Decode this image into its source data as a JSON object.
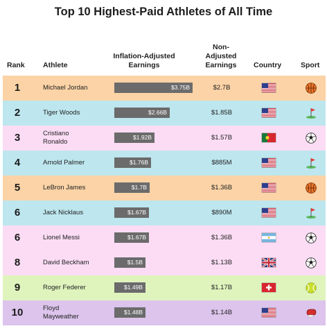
{
  "title": "Top 10 Highest-Paid Athletes of All Time",
  "headers": {
    "rank": "Rank",
    "athlete": "Athlete",
    "inflation": "Inflation-Adjusted\nEarnings",
    "non_adjusted": "Non-\nAdjusted\nEarnings",
    "country": "Country",
    "sport": "Sport"
  },
  "sport_colors": {
    "basketball": "#fbd3a6",
    "golf": "#bde6ee",
    "soccer": "#fbdcf4",
    "tennis": "#dff4bd",
    "boxing": "#dcc4ec"
  },
  "bar_color": "#6b6b6b",
  "chart_data": {
    "type": "table",
    "x_unit": "billions USD",
    "max_value": 3.75,
    "rows": [
      {
        "rank": "1",
        "athlete": "Michael Jordan",
        "inflation_value": 3.75,
        "inflation_label": "$3.75B",
        "non_adjusted": "$2.7B",
        "country": "usa",
        "sport": "basketball"
      },
      {
        "rank": "2",
        "athlete": "Tiger Woods",
        "inflation_value": 2.66,
        "inflation_label": "$2.66B",
        "non_adjusted": "$1.85B",
        "country": "usa",
        "sport": "golf"
      },
      {
        "rank": "3",
        "athlete": "Cristiano\nRonaldo",
        "inflation_value": 1.92,
        "inflation_label": "$1.92B",
        "non_adjusted": "$1.57B",
        "country": "portugal",
        "sport": "soccer"
      },
      {
        "rank": "4",
        "athlete": "Arnold Palmer",
        "inflation_value": 1.76,
        "inflation_label": "$1.76B",
        "non_adjusted": "$885M",
        "country": "usa",
        "sport": "golf"
      },
      {
        "rank": "5",
        "athlete": "LeBron James",
        "inflation_value": 1.7,
        "inflation_label": "$1.7B",
        "non_adjusted": "$1.36B",
        "country": "usa",
        "sport": "basketball"
      },
      {
        "rank": "6",
        "athlete": "Jack Nicklaus",
        "inflation_value": 1.67,
        "inflation_label": "$1.67B",
        "non_adjusted": "$890M",
        "country": "usa",
        "sport": "golf"
      },
      {
        "rank": "6",
        "athlete": "Lionel Messi",
        "inflation_value": 1.67,
        "inflation_label": "$1.67B",
        "non_adjusted": "$1.36B",
        "country": "argentina",
        "sport": "soccer"
      },
      {
        "rank": "8",
        "athlete": "David Beckham",
        "inflation_value": 1.5,
        "inflation_label": "$1.5B",
        "non_adjusted": "$1.13B",
        "country": "uk",
        "sport": "soccer"
      },
      {
        "rank": "9",
        "athlete": "Roger Federer",
        "inflation_value": 1.49,
        "inflation_label": "$1.49B",
        "non_adjusted": "$1.17B",
        "country": "switzerland",
        "sport": "tennis"
      },
      {
        "rank": "10",
        "athlete": "Floyd\nMayweather",
        "inflation_value": 1.48,
        "inflation_label": "$1.48B",
        "non_adjusted": "$1.14B",
        "country": "usa",
        "sport": "boxing"
      }
    ]
  }
}
